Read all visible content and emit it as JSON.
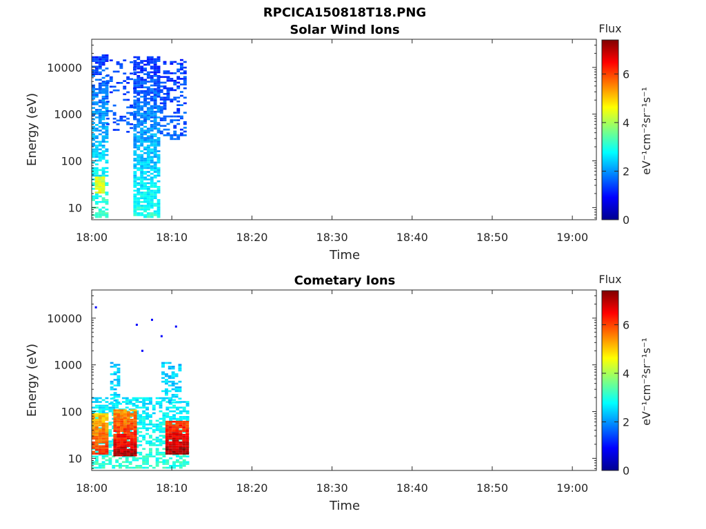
{
  "figure": {
    "title": "RPCICA150818T18.PNG"
  },
  "colormap": [
    "#00008f",
    "#0000ff",
    "#0080ff",
    "#00ffff",
    "#80ff80",
    "#ffff00",
    "#ff8000",
    "#ff0000",
    "#800000"
  ],
  "chart_data": [
    {
      "type": "heatmap",
      "title": "Solar Wind Ions",
      "xlabel": "Time",
      "ylabel": "Energy (eV)",
      "yscale": "log",
      "xlim": [
        "18:00",
        "19:03"
      ],
      "ylim": [
        5.5,
        40000
      ],
      "xticks": [
        "18:00",
        "18:10",
        "18:20",
        "18:30",
        "18:40",
        "18:50",
        "19:00"
      ],
      "yticks": [
        "10",
        "100",
        "1000",
        "10000"
      ],
      "colorbar": {
        "title": "Flux",
        "label": "eV⁻¹cm⁻²sr⁻¹s⁻¹",
        "range": [
          0,
          7.4
        ],
        "ticks": [
          "0",
          "2",
          "4",
          "6"
        ]
      },
      "regions": [
        {
          "t": [
            0.0,
            1.8
          ],
          "e": [
            6,
            18000
          ],
          "level_low": 3.2,
          "level_high": 1.3,
          "density": 0.65
        },
        {
          "t": [
            5.2,
            8.5
          ],
          "e": [
            6,
            17000
          ],
          "level_low": 3.0,
          "level_high": 1.2,
          "density": 0.75
        },
        {
          "t": [
            8.5,
            11.8
          ],
          "e": [
            280,
            14000
          ],
          "level_low": 1.6,
          "level_high": 1.3,
          "density": 0.4
        },
        {
          "t": [
            1.8,
            5.2
          ],
          "e": [
            400,
            14000
          ],
          "level_low": 1.5,
          "level_high": 1.3,
          "density": 0.25
        },
        {
          "t": [
            0.4,
            1.6
          ],
          "e": [
            20,
            45
          ],
          "level_low": 4.6,
          "level_high": 4.3,
          "density": 0.9
        }
      ]
    },
    {
      "type": "heatmap",
      "title": "Cometary Ions",
      "xlabel": "Time",
      "ylabel": "Energy (eV)",
      "yscale": "log",
      "xlim": [
        "18:00",
        "19:03"
      ],
      "ylim": [
        5.5,
        40000
      ],
      "xticks": [
        "18:00",
        "18:10",
        "18:20",
        "18:30",
        "18:40",
        "18:50",
        "19:00"
      ],
      "yticks": [
        "10",
        "100",
        "1000",
        "10000"
      ],
      "colorbar": {
        "title": "Flux",
        "label": "eV⁻¹cm⁻²sr⁻¹s⁻¹",
        "range": [
          0,
          7.4
        ],
        "ticks": [
          "0",
          "2",
          "4",
          "6"
        ]
      },
      "regions": [
        {
          "t": [
            0.0,
            11.8
          ],
          "e": [
            6,
            200
          ],
          "level_low": 3.1,
          "level_high": 2.6,
          "density": 0.55
        },
        {
          "t": [
            2.3,
            3.4
          ],
          "e": [
            150,
            1100
          ],
          "level_low": 2.5,
          "level_high": 2.4,
          "density": 0.5
        },
        {
          "t": [
            8.7,
            11.0
          ],
          "e": [
            150,
            1100
          ],
          "level_low": 2.5,
          "level_high": 2.4,
          "density": 0.5
        },
        {
          "t": [
            0.0,
            2.0
          ],
          "e": [
            12,
            90
          ],
          "level_low": 6.2,
          "level_high": 5.0,
          "density": 0.95
        },
        {
          "t": [
            2.7,
            5.3
          ],
          "e": [
            11,
            110
          ],
          "level_low": 7.0,
          "level_high": 5.3,
          "density": 0.95
        },
        {
          "t": [
            9.2,
            11.8
          ],
          "e": [
            12,
            60
          ],
          "level_low": 7.2,
          "level_high": 6.0,
          "density": 0.98
        }
      ],
      "points": [
        {
          "t": 0.4,
          "e": 17000,
          "level": 0.9
        },
        {
          "t": 5.5,
          "e": 7200,
          "level": 0.9
        },
        {
          "t": 6.2,
          "e": 2000,
          "level": 0.9
        },
        {
          "t": 7.4,
          "e": 9200,
          "level": 0.9
        },
        {
          "t": 8.6,
          "e": 4100,
          "level": 0.9
        },
        {
          "t": 10.4,
          "e": 6600,
          "level": 0.9
        }
      ]
    }
  ]
}
